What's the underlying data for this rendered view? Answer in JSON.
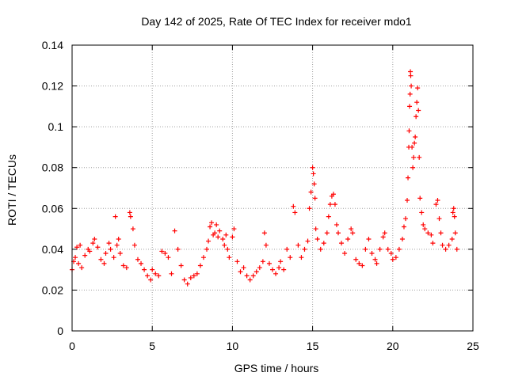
{
  "chart_data": {
    "type": "scatter",
    "title": "Day 142 of 2025, Rate Of TEC Index for receiver mdo1",
    "xlabel": "GPS time / hours",
    "ylabel": "ROTI / TECUs",
    "xlim": [
      0,
      25
    ],
    "ylim": [
      0,
      0.14
    ],
    "xticks": [
      0,
      5,
      10,
      15,
      20,
      25
    ],
    "xtick_labels": [
      "0",
      "5",
      "10",
      "15",
      "20",
      "25"
    ],
    "yticks": [
      0,
      0.02,
      0.04,
      0.06,
      0.08,
      0.1,
      0.12,
      0.14
    ],
    "ytick_labels": [
      "0",
      "0.02",
      "0.04",
      "0.06",
      "0.08",
      "0.1",
      "0.12",
      "0.14"
    ],
    "grid": true,
    "marker": "+",
    "color": "#ff0000",
    "series": [
      {
        "name": "ROTI",
        "points": [
          [
            0.0,
            0.03
          ],
          [
            0.1,
            0.034
          ],
          [
            0.2,
            0.036
          ],
          [
            0.3,
            0.041
          ],
          [
            0.4,
            0.033
          ],
          [
            0.5,
            0.042
          ],
          [
            0.6,
            0.031
          ],
          [
            0.8,
            0.037
          ],
          [
            1.0,
            0.04
          ],
          [
            1.1,
            0.039
          ],
          [
            1.3,
            0.043
          ],
          [
            1.4,
            0.045
          ],
          [
            1.6,
            0.041
          ],
          [
            1.8,
            0.035
          ],
          [
            2.0,
            0.033
          ],
          [
            2.1,
            0.038
          ],
          [
            2.3,
            0.043
          ],
          [
            2.4,
            0.04
          ],
          [
            2.6,
            0.036
          ],
          [
            2.7,
            0.056
          ],
          [
            2.8,
            0.042
          ],
          [
            2.9,
            0.045
          ],
          [
            3.0,
            0.038
          ],
          [
            3.2,
            0.032
          ],
          [
            3.4,
            0.031
          ],
          [
            3.6,
            0.058
          ],
          [
            3.65,
            0.056
          ],
          [
            3.8,
            0.05
          ],
          [
            3.9,
            0.042
          ],
          [
            4.1,
            0.035
          ],
          [
            4.3,
            0.033
          ],
          [
            4.5,
            0.03
          ],
          [
            4.7,
            0.027
          ],
          [
            4.9,
            0.025
          ],
          [
            5.0,
            0.03
          ],
          [
            5.2,
            0.028
          ],
          [
            5.4,
            0.027
          ],
          [
            5.6,
            0.039
          ],
          [
            5.8,
            0.038
          ],
          [
            6.0,
            0.036
          ],
          [
            6.2,
            0.028
          ],
          [
            6.4,
            0.049
          ],
          [
            6.6,
            0.04
          ],
          [
            6.8,
            0.032
          ],
          [
            7.0,
            0.025
          ],
          [
            7.2,
            0.023
          ],
          [
            7.4,
            0.026
          ],
          [
            7.6,
            0.027
          ],
          [
            7.8,
            0.028
          ],
          [
            8.0,
            0.032
          ],
          [
            8.2,
            0.036
          ],
          [
            8.4,
            0.04
          ],
          [
            8.5,
            0.044
          ],
          [
            8.6,
            0.051
          ],
          [
            8.7,
            0.053
          ],
          [
            8.8,
            0.047
          ],
          [
            8.9,
            0.048
          ],
          [
            9.0,
            0.052
          ],
          [
            9.1,
            0.046
          ],
          [
            9.2,
            0.049
          ],
          [
            9.4,
            0.045
          ],
          [
            9.5,
            0.042
          ],
          [
            9.6,
            0.047
          ],
          [
            9.7,
            0.04
          ],
          [
            9.8,
            0.036
          ],
          [
            10.0,
            0.046
          ],
          [
            10.1,
            0.05
          ],
          [
            10.3,
            0.034
          ],
          [
            10.5,
            0.029
          ],
          [
            10.7,
            0.031
          ],
          [
            10.9,
            0.027
          ],
          [
            11.1,
            0.025
          ],
          [
            11.3,
            0.027
          ],
          [
            11.5,
            0.029
          ],
          [
            11.7,
            0.031
          ],
          [
            11.9,
            0.034
          ],
          [
            12.0,
            0.048
          ],
          [
            12.1,
            0.042
          ],
          [
            12.3,
            0.033
          ],
          [
            12.5,
            0.03
          ],
          [
            12.7,
            0.028
          ],
          [
            12.9,
            0.031
          ],
          [
            13.0,
            0.034
          ],
          [
            13.2,
            0.03
          ],
          [
            13.4,
            0.04
          ],
          [
            13.6,
            0.036
          ],
          [
            13.8,
            0.061
          ],
          [
            13.9,
            0.058
          ],
          [
            14.1,
            0.042
          ],
          [
            14.3,
            0.036
          ],
          [
            14.5,
            0.04
          ],
          [
            14.7,
            0.044
          ],
          [
            14.8,
            0.06
          ],
          [
            14.9,
            0.068
          ],
          [
            15.0,
            0.08
          ],
          [
            15.05,
            0.077
          ],
          [
            15.1,
            0.072
          ],
          [
            15.15,
            0.065
          ],
          [
            15.2,
            0.05
          ],
          [
            15.3,
            0.045
          ],
          [
            15.5,
            0.04
          ],
          [
            15.7,
            0.043
          ],
          [
            15.9,
            0.048
          ],
          [
            16.0,
            0.056
          ],
          [
            16.1,
            0.062
          ],
          [
            16.2,
            0.066
          ],
          [
            16.3,
            0.067
          ],
          [
            16.4,
            0.062
          ],
          [
            16.5,
            0.052
          ],
          [
            16.6,
            0.048
          ],
          [
            16.8,
            0.043
          ],
          [
            17.0,
            0.038
          ],
          [
            17.2,
            0.045
          ],
          [
            17.4,
            0.05
          ],
          [
            17.5,
            0.048
          ],
          [
            17.7,
            0.035
          ],
          [
            17.9,
            0.033
          ],
          [
            18.1,
            0.032
          ],
          [
            18.3,
            0.04
          ],
          [
            18.5,
            0.045
          ],
          [
            18.7,
            0.038
          ],
          [
            18.9,
            0.035
          ],
          [
            19.0,
            0.033
          ],
          [
            19.2,
            0.04
          ],
          [
            19.4,
            0.046
          ],
          [
            19.5,
            0.048
          ],
          [
            19.7,
            0.04
          ],
          [
            19.9,
            0.038
          ],
          [
            20.0,
            0.035
          ],
          [
            20.2,
            0.036
          ],
          [
            20.4,
            0.04
          ],
          [
            20.6,
            0.045
          ],
          [
            20.7,
            0.051
          ],
          [
            20.8,
            0.055
          ],
          [
            20.9,
            0.064
          ],
          [
            20.95,
            0.075
          ],
          [
            21.0,
            0.09
          ],
          [
            21.02,
            0.098
          ],
          [
            21.05,
            0.11
          ],
          [
            21.08,
            0.116
          ],
          [
            21.1,
            0.127
          ],
          [
            21.12,
            0.125
          ],
          [
            21.15,
            0.12
          ],
          [
            21.2,
            0.09
          ],
          [
            21.25,
            0.08
          ],
          [
            21.3,
            0.085
          ],
          [
            21.35,
            0.092
          ],
          [
            21.4,
            0.095
          ],
          [
            21.45,
            0.105
          ],
          [
            21.5,
            0.112
          ],
          [
            21.55,
            0.119
          ],
          [
            21.6,
            0.108
          ],
          [
            21.65,
            0.085
          ],
          [
            21.7,
            0.065
          ],
          [
            21.8,
            0.058
          ],
          [
            21.9,
            0.052
          ],
          [
            22.0,
            0.05
          ],
          [
            22.2,
            0.048
          ],
          [
            22.4,
            0.047
          ],
          [
            22.5,
            0.043
          ],
          [
            22.7,
            0.062
          ],
          [
            22.8,
            0.064
          ],
          [
            22.9,
            0.055
          ],
          [
            23.0,
            0.048
          ],
          [
            23.1,
            0.042
          ],
          [
            23.3,
            0.04
          ],
          [
            23.5,
            0.042
          ],
          [
            23.7,
            0.045
          ],
          [
            23.75,
            0.058
          ],
          [
            23.8,
            0.06
          ],
          [
            23.85,
            0.056
          ],
          [
            23.9,
            0.048
          ],
          [
            24.0,
            0.04
          ]
        ]
      }
    ]
  }
}
